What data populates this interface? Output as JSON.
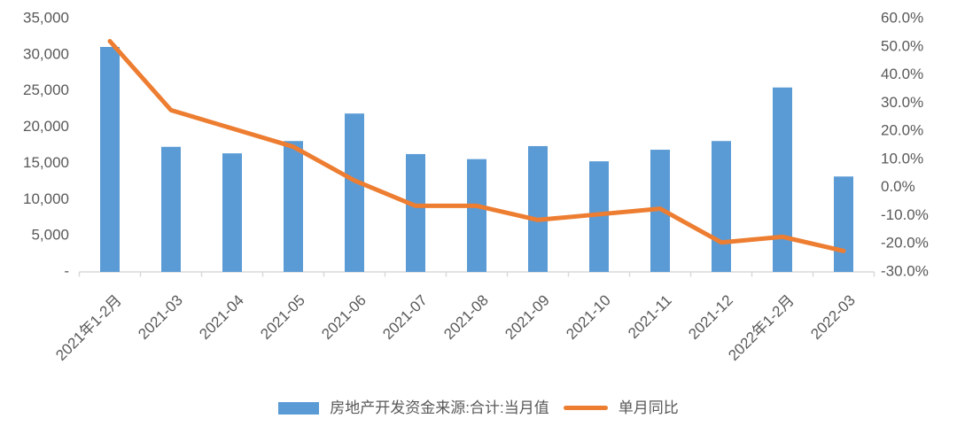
{
  "chart_data": {
    "type": "bar-line-combo",
    "title": "",
    "categories": [
      "2021年1-2月",
      "2021-03",
      "2021-04",
      "2021-05",
      "2021-06",
      "2021-07",
      "2021-08",
      "2021-09",
      "2021-10",
      "2021-11",
      "2021-12",
      "2022年1-2月",
      "2022-03"
    ],
    "series": [
      {
        "name": "房地产开发资金来源:合计:当月值",
        "type": "bar",
        "axis": "left",
        "color": "#5B9BD5",
        "values": [
          30900,
          17100,
          16200,
          17900,
          21700,
          16100,
          15400,
          17200,
          15100,
          16700,
          17900,
          25300,
          13000
        ]
      },
      {
        "name": "单月同比",
        "type": "line",
        "axis": "right",
        "color": "#ED7D31",
        "values": [
          51.5,
          27,
          20.5,
          14,
          2,
          -7,
          -7,
          -12,
          -10,
          -8,
          -20,
          -18,
          -23
        ]
      }
    ],
    "left_axis": {
      "min": 0,
      "max": 35000,
      "step": 5000,
      "tick_values": [
        35000,
        30000,
        25000,
        20000,
        15000,
        10000,
        5000,
        0
      ],
      "tick_labels": [
        "35,000",
        "30,000",
        "25,000",
        "20,000",
        "15,000",
        "10,000",
        "5,000",
        "-"
      ]
    },
    "right_axis": {
      "min": -30,
      "max": 60,
      "step": 10,
      "tick_values": [
        60,
        50,
        40,
        30,
        20,
        10,
        0,
        -10,
        -20,
        -30
      ],
      "tick_labels": [
        "60.0%",
        "50.0%",
        "40.0%",
        "30.0%",
        "20.0%",
        "10.0%",
        "0.0%",
        "-10.0%",
        "-20.0%",
        "-30.0%"
      ]
    },
    "grid": false,
    "legend_position": "bottom",
    "x_labels_rotation_deg": -45
  },
  "colors": {
    "bar": "#5B9BD5",
    "line": "#ED7D31",
    "axis_text": "#595959",
    "axis_line": "#D9D9D9",
    "background": "#FFFFFF"
  }
}
